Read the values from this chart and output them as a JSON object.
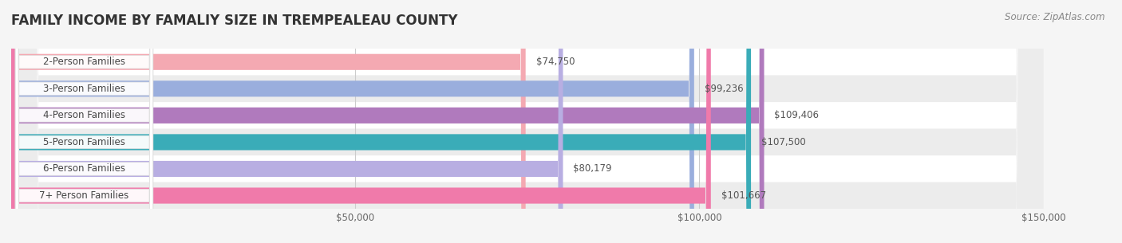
{
  "title": "FAMILY INCOME BY FAMALIY SIZE IN TREMPEALEAU COUNTY",
  "source": "Source: ZipAtlas.com",
  "categories": [
    "2-Person Families",
    "3-Person Families",
    "4-Person Families",
    "5-Person Families",
    "6-Person Families",
    "7+ Person Families"
  ],
  "values": [
    74750,
    99236,
    109406,
    107500,
    80179,
    101667
  ],
  "bar_colors": [
    "#f4a9b2",
    "#9aaedd",
    "#b07abd",
    "#3aacb8",
    "#b8aee2",
    "#f07aaa"
  ],
  "xlim": [
    0,
    150000
  ],
  "xtick_labels": [
    "$50,000",
    "$100,000",
    "$150,000"
  ],
  "bar_height": 0.6,
  "background_color": "#f5f5f5",
  "title_fontsize": 12,
  "label_fontsize": 8.5,
  "value_fontsize": 8.5,
  "source_fontsize": 8.5
}
